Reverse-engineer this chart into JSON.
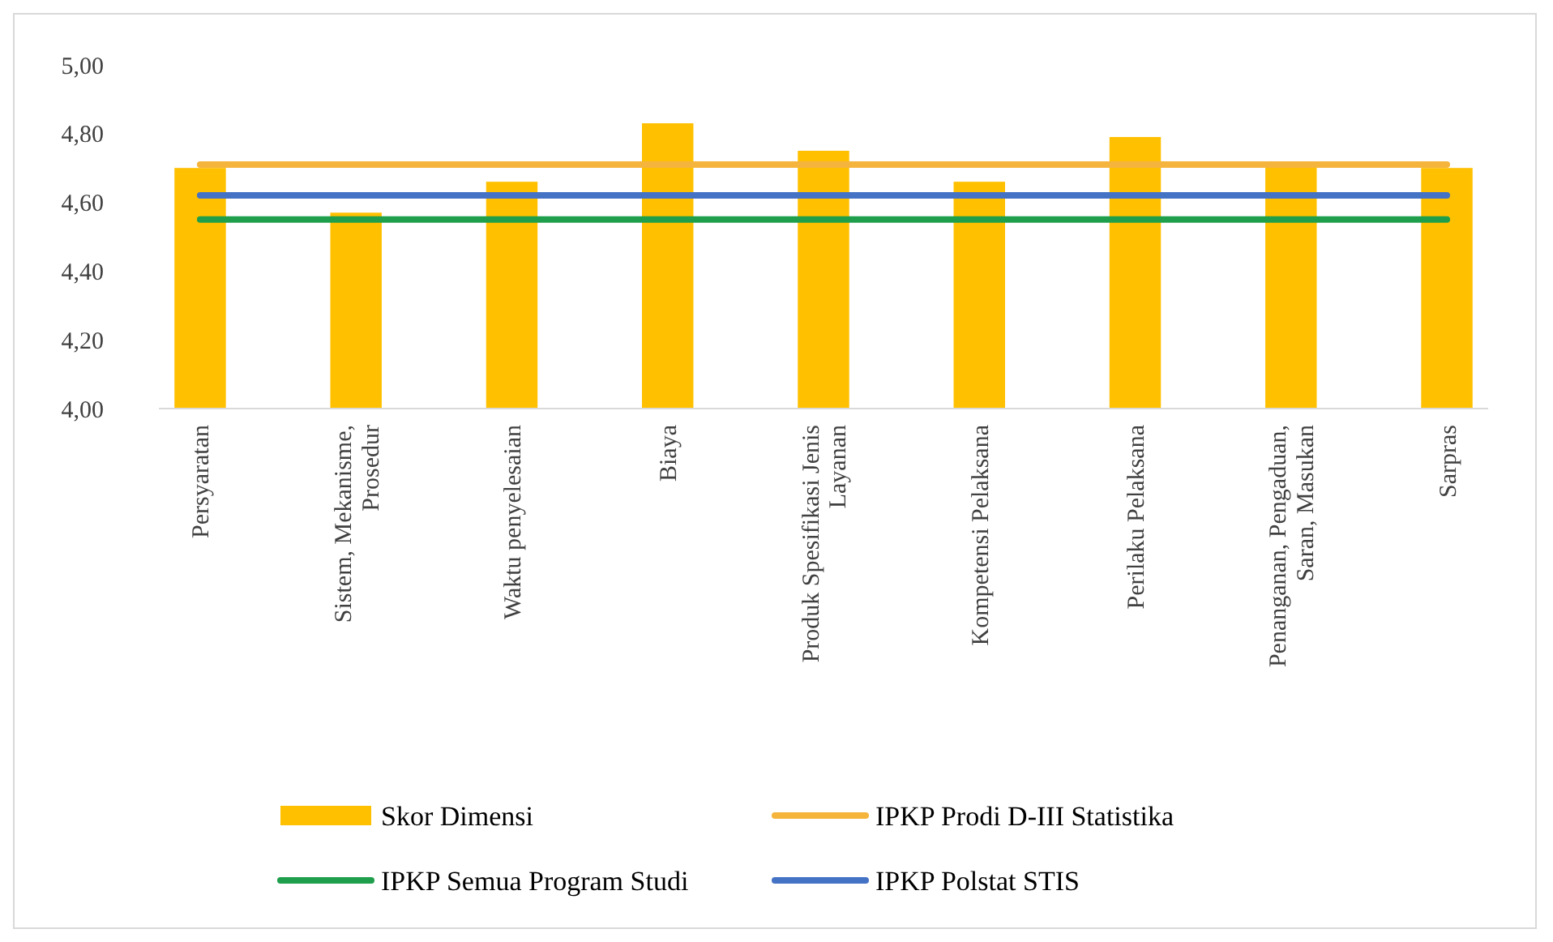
{
  "chart_data": {
    "type": "bar",
    "categories": [
      "Persyaratan",
      "Sistem, Mekanisme, Prosedur",
      "Waktu penyelesaian",
      "Biaya",
      "Produk Spesifikasi Jenis Layanan",
      "Kompetensi Pelaksana",
      "Perilaku Pelaksana",
      "Penanganan, Pengaduan, Saran, Masukan",
      "Sarpras"
    ],
    "series": [
      {
        "name": "Skor Dimensi",
        "color": "#ffc000",
        "values": [
          4.7,
          4.57,
          4.66,
          4.83,
          4.75,
          4.66,
          4.79,
          4.71,
          4.7
        ]
      },
      {
        "name": "IPKP Prodi D-III Statistika",
        "type": "line",
        "color": "#f5b43c",
        "values": [
          4.71,
          4.71,
          4.71,
          4.71,
          4.71,
          4.71,
          4.71,
          4.71,
          4.71
        ]
      },
      {
        "name": "IPKP Semua Program Studi",
        "type": "line",
        "color": "#1f9e4b",
        "values": [
          4.55,
          4.55,
          4.55,
          4.55,
          4.55,
          4.55,
          4.55,
          4.55,
          4.55
        ]
      },
      {
        "name": "IPKP Polstat STIS",
        "type": "line",
        "color": "#4472c4",
        "values": [
          4.62,
          4.62,
          4.62,
          4.62,
          4.62,
          4.62,
          4.62,
          4.62,
          4.62
        ]
      }
    ],
    "ylim": [
      4,
      5
    ],
    "yticks": [
      {
        "value": 4,
        "label": "4,00"
      },
      {
        "value": 4.2,
        "label": "4,20"
      },
      {
        "value": 4.4,
        "label": "4,40"
      },
      {
        "value": 4.6,
        "label": "4,60"
      },
      {
        "value": 4.8,
        "label": "4,80"
      },
      {
        "value": 5,
        "label": "5,00"
      }
    ],
    "grid": false,
    "legend": "bottom",
    "marker": "none",
    "line_style": "solid"
  }
}
